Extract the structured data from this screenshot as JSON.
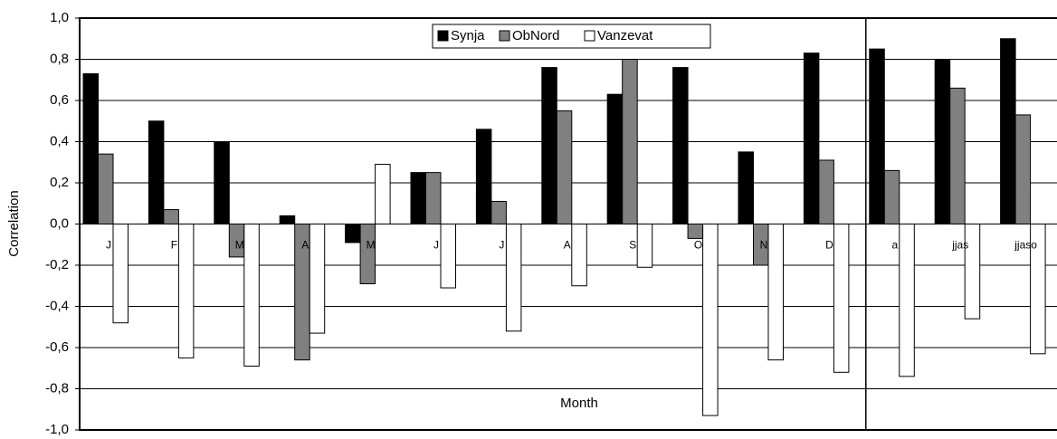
{
  "chart_data": {
    "type": "bar",
    "y_label": "Correlation",
    "x_label": "Month",
    "categories": [
      "J",
      "F",
      "M",
      "A",
      "M",
      "J",
      "J",
      "A",
      "S",
      "O",
      "N",
      "D",
      "a",
      "jjas",
      "jjaso"
    ],
    "series": [
      {
        "name": "Synja",
        "color": "#000000",
        "values": [
          0.73,
          0.5,
          0.4,
          0.04,
          -0.09,
          0.25,
          0.46,
          0.76,
          0.63,
          0.76,
          0.35,
          0.83,
          0.85,
          0.8,
          0.9
        ]
      },
      {
        "name": "ObNord",
        "color": "#808080",
        "values": [
          0.34,
          0.07,
          -0.16,
          -0.66,
          -0.29,
          0.25,
          0.11,
          0.55,
          0.8,
          -0.07,
          -0.2,
          0.31,
          0.26,
          0.66,
          0.53
        ]
      },
      {
        "name": "Vanzevat",
        "color": "#ffffff",
        "values": [
          -0.48,
          -0.65,
          -0.69,
          -0.53,
          0.29,
          -0.31,
          -0.52,
          -0.3,
          -0.21,
          -0.93,
          -0.66,
          -0.72,
          -0.74,
          -0.46,
          -0.63
        ]
      }
    ],
    "ylim": [
      -1.0,
      1.0
    ],
    "yticks": [
      {
        "value": -1.0,
        "label": "-1,0"
      },
      {
        "value": -0.8,
        "label": "-0,8"
      },
      {
        "value": -0.6,
        "label": "-0,6"
      },
      {
        "value": -0.4,
        "label": "-0,4"
      },
      {
        "value": -0.2,
        "label": "-0,2"
      },
      {
        "value": 0.0,
        "label": "0,0"
      },
      {
        "value": 0.2,
        "label": "0,2"
      },
      {
        "value": 0.4,
        "label": "0,4"
      },
      {
        "value": 0.6,
        "label": "0,6"
      },
      {
        "value": 0.8,
        "label": "0,8"
      },
      {
        "value": 1.0,
        "label": "1,0"
      }
    ],
    "grid": true,
    "legend": "top"
  }
}
